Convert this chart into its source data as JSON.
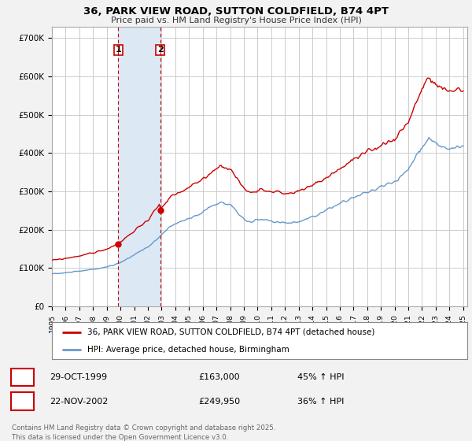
{
  "title": "36, PARK VIEW ROAD, SUTTON COLDFIELD, B74 4PT",
  "subtitle": "Price paid vs. HM Land Registry's House Price Index (HPI)",
  "property_label": "36, PARK VIEW ROAD, SUTTON COLDFIELD, B74 4PT (detached house)",
  "hpi_label": "HPI: Average price, detached house, Birmingham",
  "footer": "Contains HM Land Registry data © Crown copyright and database right 2025.\nThis data is licensed under the Open Government Licence v3.0.",
  "sale1_date": "29-OCT-1999",
  "sale1_price": "£163,000",
  "sale1_hpi": "45% ↑ HPI",
  "sale2_date": "22-NOV-2002",
  "sale2_price": "£249,950",
  "sale2_hpi": "36% ↑ HPI",
  "property_color": "#cc0000",
  "hpi_color": "#6699cc",
  "background_color": "#f2f2f2",
  "plot_bg_color": "#ffffff",
  "grid_color": "#cccccc",
  "vline_color": "#cc0000",
  "highlight_color": "#dce9f5",
  "ylim": [
    0,
    730000
  ],
  "yticks": [
    0,
    100000,
    200000,
    300000,
    400000,
    500000,
    600000,
    700000
  ],
  "ytick_labels": [
    "£0",
    "£100K",
    "£200K",
    "£300K",
    "£400K",
    "£500K",
    "£600K",
    "£700K"
  ],
  "sale1_year": 1999.83,
  "sale2_year": 2002.9,
  "sale1_price_val": 163000,
  "sale2_price_val": 249950
}
